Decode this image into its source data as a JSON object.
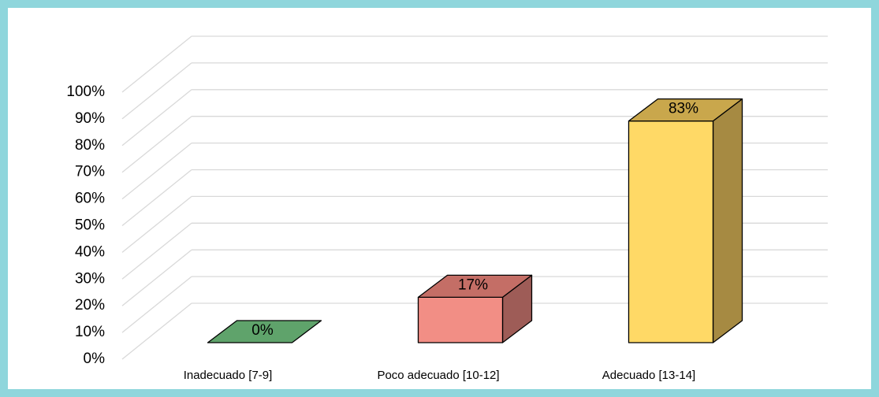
{
  "chart_data": {
    "type": "bar3d",
    "categories": [
      "Inadecuado  [7-9]",
      "Poco adecuado  [10-12]",
      "Adecuado  [13-14]"
    ],
    "values": [
      0,
      17,
      83
    ],
    "value_labels": [
      "0%",
      "17%",
      "83%"
    ],
    "colors": [
      "#5fa36b",
      "#f28e85",
      "#ffd966"
    ],
    "side_colors": [
      "#3f7a4a",
      "#9e5c57",
      "#a68a42"
    ],
    "top_colors": [
      "#5fa36b",
      "#c46e66",
      "#c9a74c"
    ],
    "ylim": [
      0,
      100
    ],
    "yticks": [
      {
        "value": 0,
        "label": "0%"
      },
      {
        "value": 10,
        "label": "10%"
      },
      {
        "value": 20,
        "label": "20%"
      },
      {
        "value": 30,
        "label": "30%"
      },
      {
        "value": 40,
        "label": "40%"
      },
      {
        "value": 50,
        "label": "50%"
      },
      {
        "value": 60,
        "label": "60%"
      },
      {
        "value": 70,
        "label": "70%"
      },
      {
        "value": 80,
        "label": "80%"
      },
      {
        "value": 90,
        "label": "90%"
      },
      {
        "value": 100,
        "label": "100%"
      }
    ],
    "grid": true
  }
}
